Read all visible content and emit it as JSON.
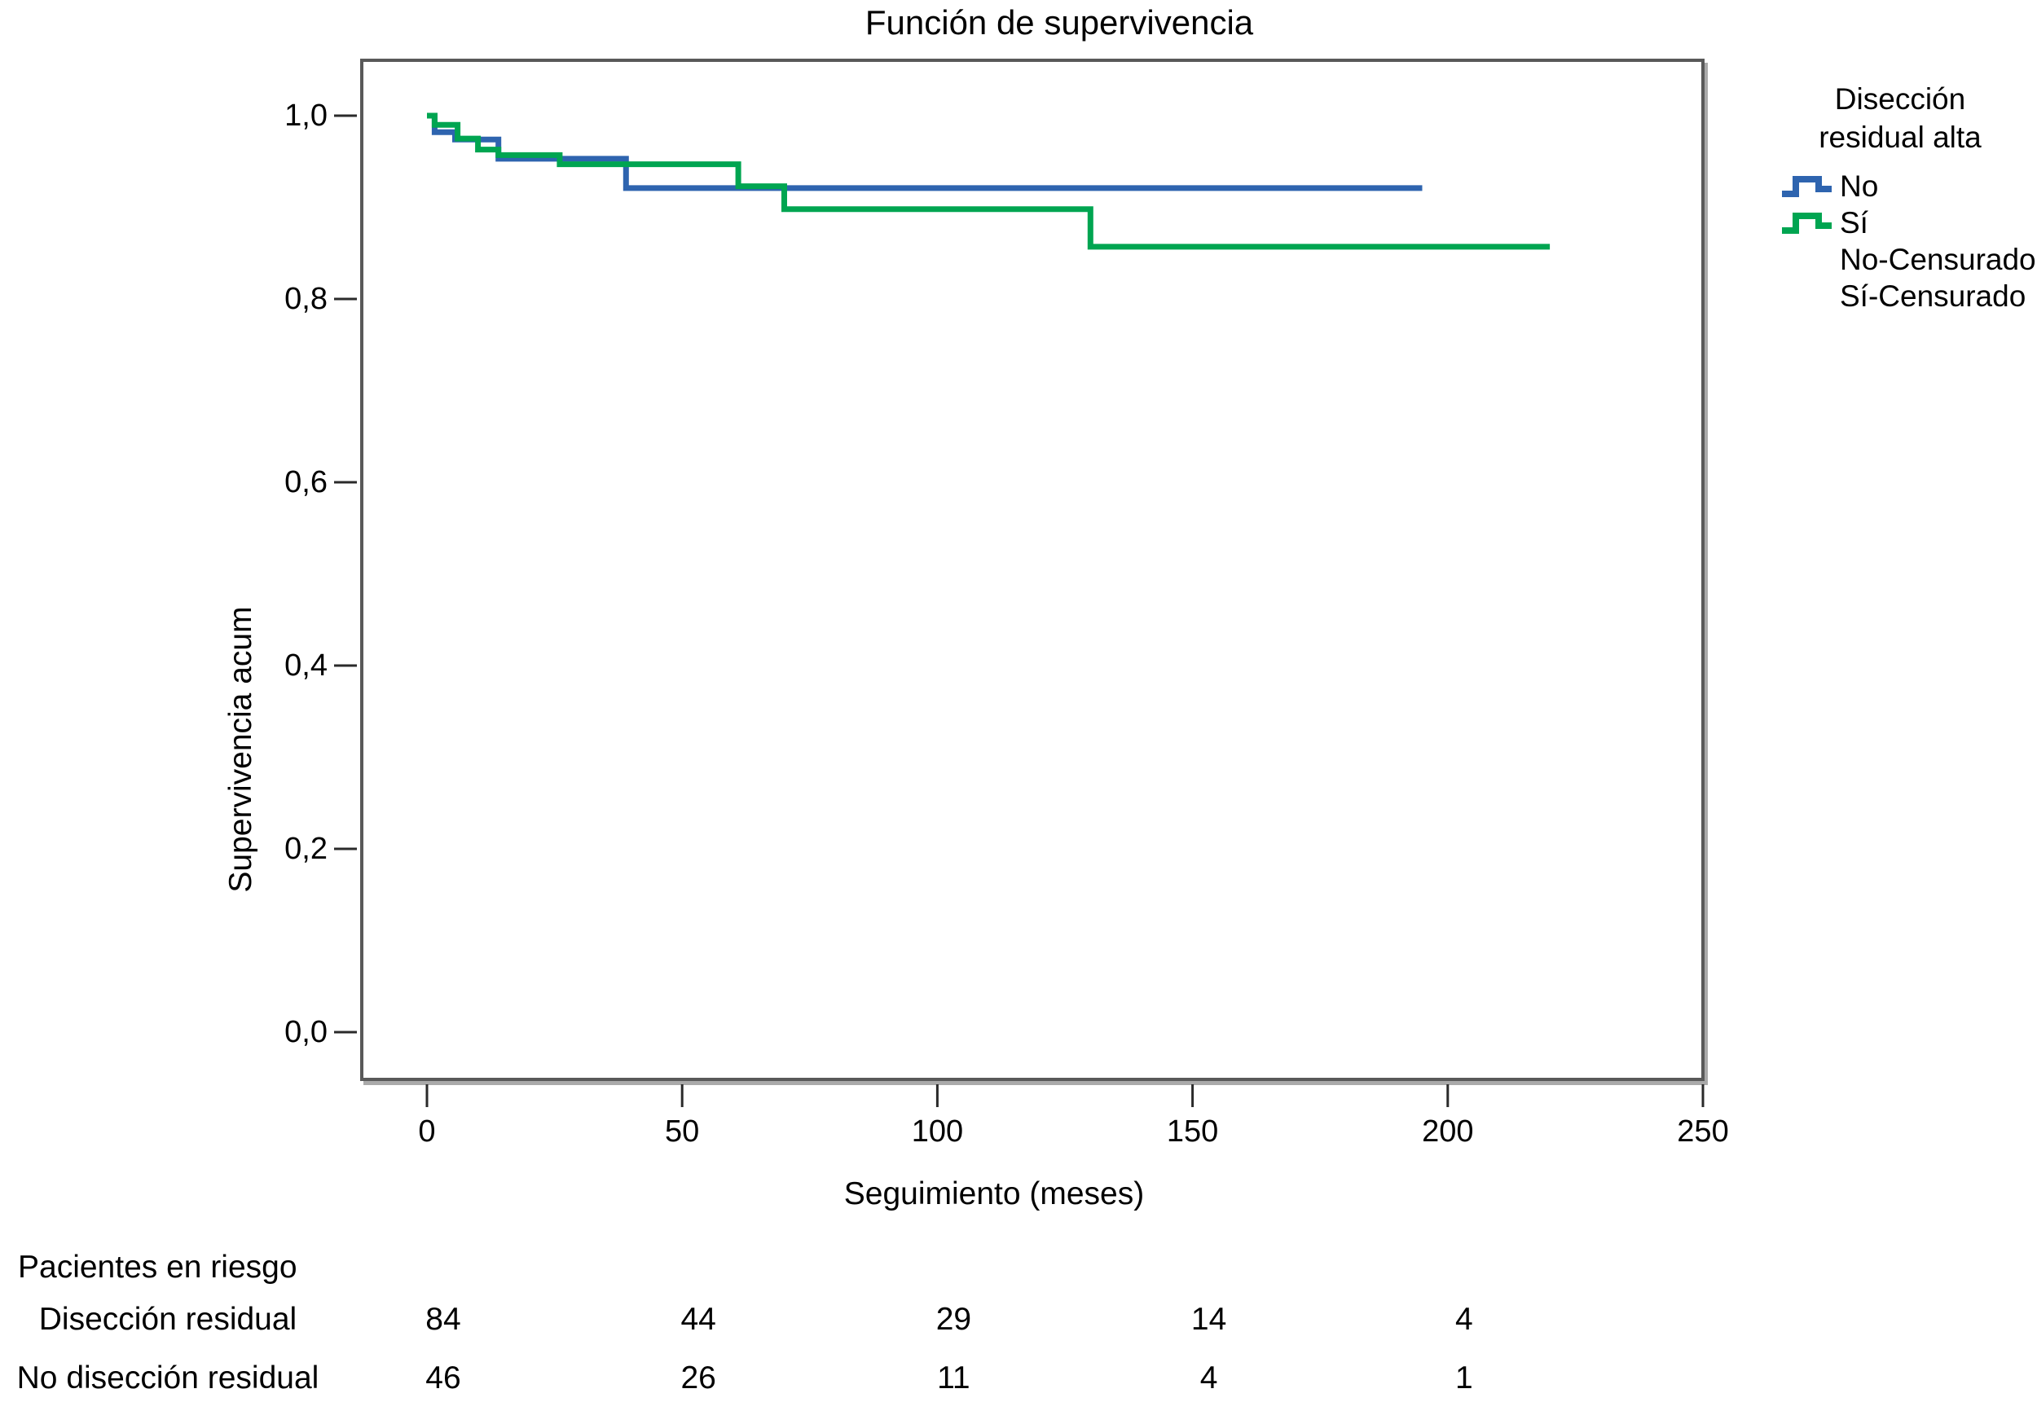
{
  "chart_data": {
    "type": "line",
    "variant": "kaplan_meier_step",
    "title": "Función de supervivencia",
    "xlabel": "Seguimiento (meses)",
    "ylabel": "Supervivencia acum",
    "xlim": [
      0,
      250
    ],
    "ylim": [
      0.0,
      1.0
    ],
    "grid": false,
    "legend_position": "right",
    "x_ticks": [
      {
        "value": 0,
        "label": "0"
      },
      {
        "value": 50,
        "label": "50"
      },
      {
        "value": 100,
        "label": "100"
      },
      {
        "value": 150,
        "label": "150"
      },
      {
        "value": 200,
        "label": "200"
      },
      {
        "value": 250,
        "label": "250"
      }
    ],
    "y_ticks": [
      {
        "value": 1.0,
        "label": "1,0"
      },
      {
        "value": 0.8,
        "label": "0,8"
      },
      {
        "value": 0.6,
        "label": "0,6"
      },
      {
        "value": 0.4,
        "label": "0,4"
      },
      {
        "value": 0.2,
        "label": "0,2"
      },
      {
        "value": 0.0,
        "label": "0,0"
      }
    ],
    "legend": {
      "title_lines": [
        "Disección",
        "residual alta"
      ],
      "entries": [
        {
          "id": "no",
          "label": "No",
          "color": "#2E64AF",
          "marker": "step-line"
        },
        {
          "id": "si",
          "label": "Sí",
          "color": "#00A551",
          "marker": "step-line"
        },
        {
          "id": "no-censurado",
          "label": "No-Censurado",
          "color": "#2E64AF",
          "marker": "none"
        },
        {
          "id": "si-censurado",
          "label": "Sí-Censurado",
          "color": "#00A551",
          "marker": "none"
        }
      ]
    },
    "series": [
      {
        "id": "no",
        "name": "No",
        "color": "#2E64AF",
        "points": [
          [
            0,
            1.0
          ],
          [
            1.5,
            0.982
          ],
          [
            5.5,
            0.974
          ],
          [
            14,
            0.953
          ],
          [
            39,
            0.921
          ],
          [
            195,
            0.921
          ]
        ]
      },
      {
        "id": "si",
        "name": "Sí",
        "color": "#00A551",
        "points": [
          [
            0,
            1.0
          ],
          [
            1.5,
            0.99
          ],
          [
            6,
            0.975
          ],
          [
            10,
            0.963
          ],
          [
            14,
            0.957
          ],
          [
            26,
            0.947
          ],
          [
            61,
            0.923
          ],
          [
            70,
            0.898
          ],
          [
            130,
            0.857
          ],
          [
            220,
            0.857
          ]
        ]
      }
    ]
  },
  "risk_table": {
    "header": "Pacientes en riesgo",
    "time_points": [
      0,
      50,
      100,
      150,
      200
    ],
    "rows": [
      {
        "label": "Disección residual",
        "values": [
          84,
          44,
          29,
          14,
          4
        ]
      },
      {
        "label": "No disección residual",
        "values": [
          46,
          26,
          11,
          4,
          1
        ]
      }
    ]
  }
}
